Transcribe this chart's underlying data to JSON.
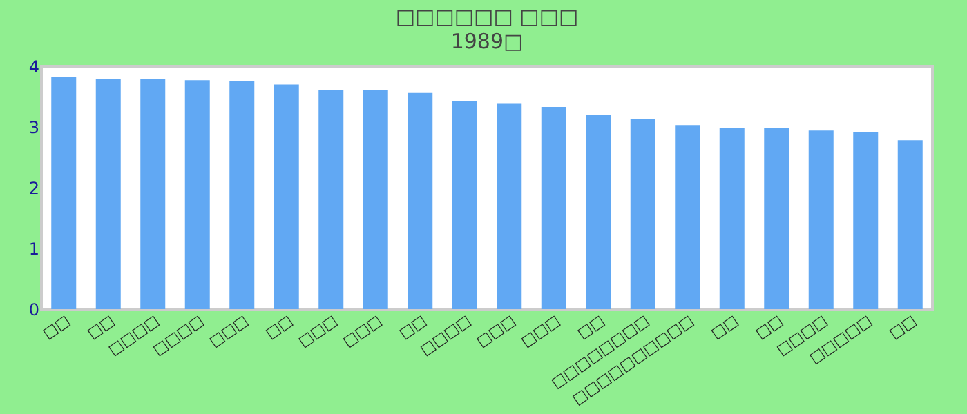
{
  "chart_data": {
    "type": "bar",
    "title": "□□□□□□ □□□",
    "subtitle": "1989□",
    "categories": [
      "□□",
      "□□",
      "□□□□",
      "□□□□",
      "□□□",
      "□□",
      "□□□",
      "□□□",
      "□□",
      "□□□□",
      "□□□",
      "□□□",
      "□□",
      "□□□□□□□□",
      "□□□□□□□□□□",
      "□□",
      "□□",
      "□□□□",
      "□□□□□",
      "□□"
    ],
    "values": [
      3.82,
      3.79,
      3.79,
      3.77,
      3.75,
      3.7,
      3.61,
      3.61,
      3.56,
      3.43,
      3.38,
      3.33,
      3.2,
      3.13,
      3.03,
      2.99,
      2.99,
      2.94,
      2.92,
      2.78
    ],
    "color": "#61a8f3",
    "ylim": [
      0,
      4
    ],
    "yticks": [
      0,
      1,
      2,
      3,
      4
    ],
    "grid": false
  }
}
